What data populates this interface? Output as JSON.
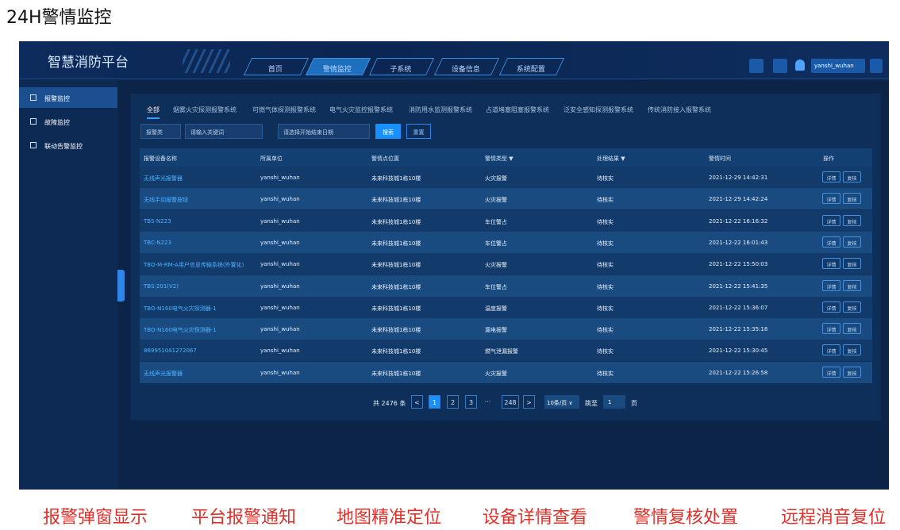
{
  "header": {
    "title": "24H警情监控"
  },
  "app": {
    "logo": "智慧消防平台",
    "nav": [
      "首页",
      "警情监控",
      "子系统",
      "设备信息",
      "系统配置"
    ],
    "active_nav": 1,
    "user": "yanshi_wuhan"
  },
  "sidebar": {
    "items": [
      "报警监控",
      "故障监控",
      "联动告警监控"
    ],
    "active": 0
  },
  "tabs": {
    "items": [
      "全部",
      "烟雾火灾探测报警系统",
      "可燃气体探测报警系统",
      "电气火灾监控报警系统",
      "消防用水监测报警系统",
      "占道堵塞阻塞报警系统",
      "泛安全感知探测报警系统",
      "传统消防接入报警系统"
    ],
    "active": 0
  },
  "filters": {
    "select": "报警类",
    "keyword": "请输入关键词",
    "date": "请选择开始结束日期",
    "search": "搜索",
    "reset": "重置"
  },
  "table": {
    "columns": [
      "报警设备名称",
      "所属单位",
      "警情点位置",
      "警情类型 ▼",
      "处理结果 ▼",
      "警情时间",
      "操作"
    ],
    "rows": [
      [
        "无线声光报警器",
        "yanshi_wuhan",
        "未来科技城1栋10楼",
        "火灾报警",
        "待核实",
        "2021-12-29 14:42:31"
      ],
      [
        "无线手动报警按钮",
        "yanshi_wuhan",
        "未来科技城1栋10楼",
        "火灾报警",
        "待核实",
        "2021-12-29 14:42:24"
      ],
      [
        "TBS-N223",
        "yanshi_wuhan",
        "未来科技城1栋10楼",
        "车位警占",
        "待核实",
        "2021-12-22 16:16:32"
      ],
      [
        "TBC-N223",
        "yanshi_wuhan",
        "未来科技城1栋10楼",
        "车位警占",
        "待核实",
        "2021-12-22 16:01:43"
      ],
      [
        "TBO-M-RM-A用户信息传输系统(外置化)",
        "yanshi_wuhan",
        "未来科技城1栋10楼",
        "火灾报警",
        "待核实",
        "2021-12-22 15:50:03"
      ],
      [
        "TBS-201(V2)",
        "yanshi_wuhan",
        "未来科技城1栋10楼",
        "车位警占",
        "待核实",
        "2021-12-22 15:41:35"
      ],
      [
        "TBO-N160电气火灾探测器-1",
        "yanshi_wuhan",
        "未来科技城1栋10楼",
        "温度报警",
        "待核实",
        "2021-12-22 15:36:07"
      ],
      [
        "TBO-N160电气火灾探测器-1",
        "yanshi_wuhan",
        "未来科技城1栋10楼",
        "漏电报警",
        "待核实",
        "2021-12-22 15:35:18"
      ],
      [
        "869951041272067",
        "yanshi_wuhan",
        "未来科技城1栋10楼",
        "燃气泄漏报警",
        "待核实",
        "2021-12-22 15:30:45"
      ],
      [
        "无线声光报警器",
        "yanshi_wuhan",
        "未来科技城1栋10楼",
        "火灾报警",
        "待核实",
        "2021-12-22 15:26:58"
      ]
    ],
    "actions": [
      "详情",
      "复核"
    ]
  },
  "pagination": {
    "total": "共 2476 条",
    "prev": "<",
    "pages": [
      "1",
      "2",
      "3",
      "···",
      "248"
    ],
    "current": 0,
    "next": ">",
    "size": "10条/页 ∨",
    "jump": "跳至",
    "jump_value": "1",
    "unit": "页"
  },
  "features": [
    "报警弹窗显示",
    "平台报警通知",
    "地图精准定位",
    "设备详情查看",
    "警情复核处置",
    "远程消音复位"
  ]
}
